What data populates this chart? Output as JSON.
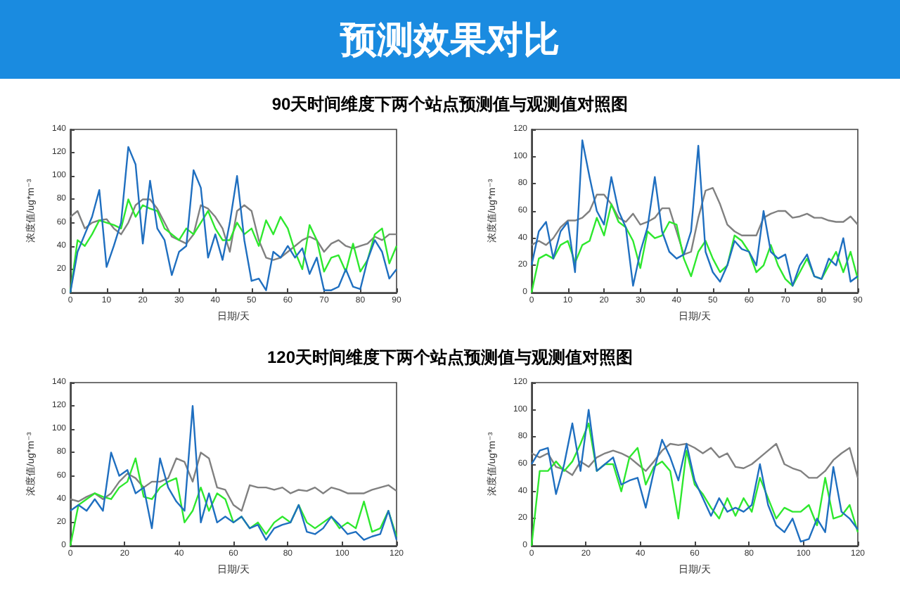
{
  "chart_data": [
    {
      "type": "line",
      "title": "预测效果对比",
      "subtitle": "90天时间维度下两个站点预测值与观测值对照图",
      "xlabel": "日期/天",
      "ylabel": "浓度值/ug*m⁻³",
      "xlim": [
        0,
        90
      ],
      "xticks": [
        0,
        10,
        20,
        30,
        40,
        50,
        60,
        70,
        80,
        90
      ],
      "ylim": [
        0,
        140
      ],
      "yticks": [
        0,
        20,
        40,
        60,
        80,
        100,
        120,
        140
      ],
      "grid": false,
      "x": [
        0,
        2,
        4,
        6,
        8,
        10,
        12,
        14,
        16,
        18,
        20,
        22,
        24,
        26,
        28,
        30,
        32,
        34,
        36,
        38,
        40,
        42,
        44,
        46,
        48,
        50,
        52,
        54,
        56,
        58,
        60,
        62,
        64,
        66,
        68,
        70,
        72,
        74,
        76,
        78,
        80,
        82,
        84,
        86,
        88,
        90
      ],
      "series": [
        {
          "color": "#808080",
          "values": [
            65,
            70,
            55,
            60,
            62,
            63,
            55,
            50,
            60,
            75,
            80,
            80,
            72,
            60,
            48,
            45,
            42,
            50,
            75,
            72,
            65,
            55,
            35,
            70,
            75,
            70,
            45,
            30,
            28,
            30,
            35,
            40,
            45,
            48,
            45,
            35,
            42,
            45,
            40,
            38,
            40,
            42,
            48,
            45,
            50,
            50
          ]
        },
        {
          "color": "#2ee82e",
          "values": [
            0,
            45,
            40,
            50,
            62,
            60,
            58,
            55,
            80,
            65,
            75,
            72,
            70,
            55,
            50,
            45,
            55,
            50,
            60,
            70,
            55,
            45,
            45,
            60,
            50,
            55,
            40,
            62,
            50,
            65,
            55,
            35,
            20,
            58,
            45,
            18,
            30,
            32,
            18,
            42,
            18,
            28,
            50,
            55,
            25,
            40
          ]
        },
        {
          "color": "#1f6fc0",
          "values": [
            0,
            35,
            50,
            65,
            88,
            22,
            40,
            60,
            125,
            110,
            42,
            96,
            55,
            45,
            15,
            35,
            40,
            105,
            90,
            30,
            50,
            28,
            60,
            100,
            45,
            10,
            12,
            2,
            35,
            30,
            40,
            30,
            38,
            16,
            30,
            2,
            2,
            5,
            20,
            5,
            3,
            28,
            45,
            35,
            12,
            20
          ]
        }
      ]
    },
    {
      "type": "line",
      "xlabel": "日期/天",
      "ylabel": "浓度值/ug*m⁻³",
      "xlim": [
        0,
        90
      ],
      "xticks": [
        0,
        10,
        20,
        30,
        40,
        50,
        60,
        70,
        80,
        90
      ],
      "ylim": [
        0,
        120
      ],
      "yticks": [
        0,
        20,
        40,
        60,
        80,
        100,
        120
      ],
      "grid": false,
      "x": [
        0,
        2,
        4,
        6,
        8,
        10,
        12,
        14,
        16,
        18,
        20,
        22,
        24,
        26,
        28,
        30,
        32,
        34,
        36,
        38,
        40,
        42,
        44,
        46,
        48,
        50,
        52,
        54,
        56,
        58,
        60,
        62,
        64,
        66,
        68,
        70,
        72,
        74,
        76,
        78,
        80,
        82,
        84,
        86,
        88,
        90
      ],
      "series": [
        {
          "color": "#808080",
          "values": [
            35,
            38,
            35,
            40,
            48,
            53,
            53,
            55,
            60,
            72,
            72,
            65,
            55,
            52,
            58,
            50,
            52,
            55,
            62,
            62,
            45,
            28,
            30,
            55,
            75,
            77,
            65,
            50,
            45,
            42,
            42,
            42,
            55,
            58,
            60,
            60,
            55,
            56,
            58,
            55,
            55,
            53,
            52,
            52,
            56,
            50
          ]
        },
        {
          "color": "#2ee82e",
          "values": [
            0,
            25,
            28,
            25,
            35,
            38,
            22,
            35,
            38,
            55,
            42,
            65,
            52,
            48,
            38,
            18,
            45,
            40,
            42,
            52,
            50,
            25,
            12,
            30,
            38,
            25,
            15,
            20,
            42,
            38,
            30,
            15,
            20,
            35,
            20,
            10,
            5,
            15,
            25,
            12,
            10,
            20,
            30,
            15,
            30,
            10
          ]
        },
        {
          "color": "#1f6fc0",
          "values": [
            20,
            45,
            52,
            25,
            45,
            52,
            15,
            112,
            85,
            60,
            50,
            85,
            60,
            48,
            5,
            30,
            48,
            85,
            45,
            30,
            25,
            28,
            45,
            108,
            30,
            15,
            8,
            20,
            38,
            32,
            30,
            20,
            60,
            30,
            25,
            28,
            5,
            20,
            28,
            12,
            10,
            25,
            20,
            40,
            8,
            12
          ]
        }
      ]
    },
    {
      "type": "line",
      "subtitle": "120天时间维度下两个站点预测值与观测值对照图",
      "xlabel": "日期/天",
      "ylabel": "浓度值/ug*m⁻³",
      "xlim": [
        0,
        120
      ],
      "xticks": [
        0,
        20,
        40,
        60,
        80,
        100,
        120
      ],
      "ylim": [
        0,
        140
      ],
      "yticks": [
        0,
        20,
        40,
        60,
        80,
        100,
        120,
        140
      ],
      "grid": false,
      "x": [
        0,
        3,
        6,
        9,
        12,
        15,
        18,
        21,
        24,
        27,
        30,
        33,
        36,
        39,
        42,
        45,
        48,
        51,
        54,
        57,
        60,
        63,
        66,
        69,
        72,
        75,
        78,
        81,
        84,
        87,
        90,
        93,
        96,
        99,
        102,
        105,
        108,
        111,
        114,
        117,
        120
      ],
      "series": [
        {
          "color": "#808080",
          "values": [
            40,
            38,
            42,
            45,
            40,
            45,
            55,
            62,
            58,
            50,
            55,
            55,
            58,
            75,
            72,
            55,
            80,
            75,
            50,
            48,
            35,
            30,
            52,
            50,
            50,
            48,
            50,
            45,
            48,
            47,
            50,
            45,
            50,
            48,
            45,
            45,
            45,
            48,
            50,
            52,
            47
          ]
        },
        {
          "color": "#2ee82e",
          "values": [
            0,
            35,
            40,
            45,
            42,
            40,
            50,
            55,
            75,
            42,
            40,
            50,
            55,
            58,
            20,
            30,
            50,
            30,
            45,
            40,
            20,
            25,
            15,
            20,
            10,
            20,
            25,
            20,
            35,
            20,
            15,
            20,
            25,
            15,
            20,
            15,
            38,
            12,
            15,
            30,
            8
          ]
        },
        {
          "color": "#1f6fc0",
          "values": [
            30,
            35,
            30,
            40,
            30,
            80,
            60,
            65,
            45,
            50,
            15,
            75,
            50,
            38,
            30,
            120,
            20,
            45,
            20,
            25,
            20,
            25,
            15,
            18,
            5,
            15,
            18,
            20,
            35,
            12,
            10,
            15,
            25,
            18,
            10,
            12,
            5,
            8,
            10,
            30,
            5
          ]
        }
      ]
    },
    {
      "type": "line",
      "xlabel": "日期/天",
      "ylabel": "浓度值/ug*m⁻³",
      "xlim": [
        0,
        120
      ],
      "xticks": [
        0,
        20,
        40,
        60,
        80,
        100,
        120
      ],
      "ylim": [
        0,
        120
      ],
      "yticks": [
        0,
        20,
        40,
        60,
        80,
        100,
        120
      ],
      "grid": false,
      "x": [
        0,
        3,
        6,
        9,
        12,
        15,
        18,
        21,
        24,
        27,
        30,
        33,
        36,
        39,
        42,
        45,
        48,
        51,
        54,
        57,
        60,
        63,
        66,
        69,
        72,
        75,
        78,
        81,
        84,
        87,
        90,
        93,
        96,
        99,
        102,
        105,
        108,
        111,
        114,
        117,
        120
      ],
      "series": [
        {
          "color": "#808080",
          "values": [
            68,
            65,
            68,
            58,
            56,
            52,
            62,
            58,
            65,
            68,
            70,
            68,
            65,
            60,
            55,
            62,
            70,
            75,
            74,
            75,
            72,
            68,
            72,
            65,
            68,
            58,
            57,
            60,
            65,
            70,
            75,
            60,
            57,
            55,
            50,
            50,
            55,
            63,
            68,
            72,
            50
          ]
        },
        {
          "color": "#2ee82e",
          "values": [
            0,
            55,
            55,
            62,
            55,
            62,
            75,
            90,
            55,
            60,
            60,
            40,
            65,
            72,
            45,
            58,
            62,
            55,
            20,
            70,
            45,
            38,
            28,
            20,
            35,
            22,
            35,
            25,
            50,
            35,
            20,
            28,
            25,
            25,
            30,
            15,
            50,
            20,
            22,
            30,
            10
          ]
        },
        {
          "color": "#1f6fc0",
          "values": [
            60,
            70,
            72,
            38,
            60,
            90,
            55,
            100,
            55,
            60,
            65,
            45,
            48,
            50,
            28,
            55,
            78,
            65,
            48,
            75,
            48,
            35,
            22,
            35,
            25,
            28,
            25,
            30,
            60,
            30,
            15,
            10,
            20,
            3,
            5,
            20,
            10,
            58,
            25,
            20,
            12
          ]
        }
      ]
    }
  ]
}
